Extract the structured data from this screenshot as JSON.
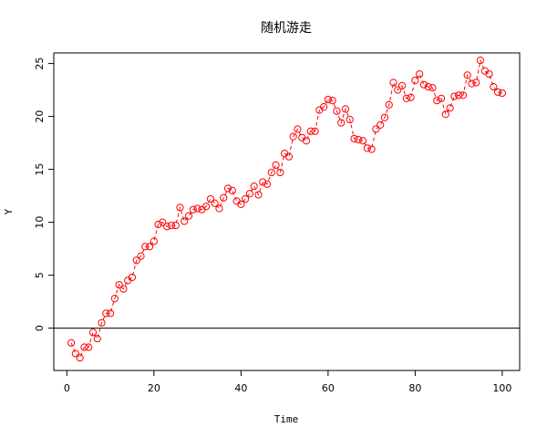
{
  "chart_data": {
    "type": "line",
    "title": "随机游走",
    "xlabel": "Time",
    "ylabel": "Y",
    "xlim": [
      -3,
      104
    ],
    "ylim": [
      -4,
      26
    ],
    "xticks": [
      0,
      20,
      40,
      60,
      80,
      100
    ],
    "yticks": [
      0,
      5,
      10,
      15,
      20,
      25
    ],
    "hline": 0,
    "grid": false,
    "colors": {
      "series": "#ff0000",
      "axis": "#000000"
    },
    "series": [
      {
        "x": [
          1,
          2,
          3,
          4,
          5,
          6,
          7,
          8,
          9,
          10,
          11,
          12,
          13,
          14,
          15,
          16,
          17,
          18,
          19,
          20,
          21,
          22,
          23,
          24,
          25,
          26,
          27,
          28,
          29,
          30,
          31,
          32,
          33,
          34,
          35,
          36,
          37,
          38,
          39,
          40,
          41,
          42,
          43,
          44,
          45,
          46,
          47,
          48,
          49,
          50,
          51,
          52,
          53,
          54,
          55,
          56,
          57,
          58,
          59,
          60,
          61,
          62,
          63,
          64,
          65,
          66,
          67,
          68,
          69,
          70,
          71,
          72,
          73,
          74,
          75,
          76,
          77,
          78,
          79,
          80,
          81,
          82,
          83,
          84,
          85,
          86,
          87,
          88,
          89,
          90,
          91,
          92,
          93,
          94,
          95,
          96,
          97,
          98,
          99,
          100
        ],
        "values": [
          -1.4,
          -2.4,
          -2.8,
          -1.8,
          -1.8,
          -0.4,
          -1.0,
          0.5,
          1.4,
          1.4,
          2.8,
          4.1,
          3.7,
          4.5,
          4.8,
          6.4,
          6.8,
          7.7,
          7.7,
          8.2,
          9.8,
          10.0,
          9.6,
          9.7,
          9.7,
          11.4,
          10.1,
          10.6,
          11.2,
          11.3,
          11.2,
          11.5,
          12.2,
          11.8,
          11.3,
          12.3,
          13.2,
          13.0,
          12.0,
          11.7,
          12.2,
          12.7,
          13.4,
          12.6,
          13.8,
          13.6,
          14.7,
          15.4,
          14.7,
          16.5,
          16.2,
          18.1,
          18.8,
          18.0,
          17.7,
          18.6,
          18.6,
          20.6,
          20.9,
          21.6,
          21.5,
          20.5,
          19.4,
          20.7,
          19.7,
          17.9,
          17.8,
          17.7,
          17.0,
          16.9,
          18.8,
          19.2,
          19.9,
          21.1,
          23.2,
          22.5,
          22.9,
          21.7,
          21.8,
          23.4,
          24.0,
          23.0,
          22.8,
          22.7,
          21.5,
          21.7,
          20.2,
          20.8,
          21.9,
          22.0,
          22.0,
          23.9,
          23.1,
          23.2,
          25.3,
          24.3,
          24.0,
          22.8,
          22.3,
          22.2
        ]
      }
    ]
  }
}
